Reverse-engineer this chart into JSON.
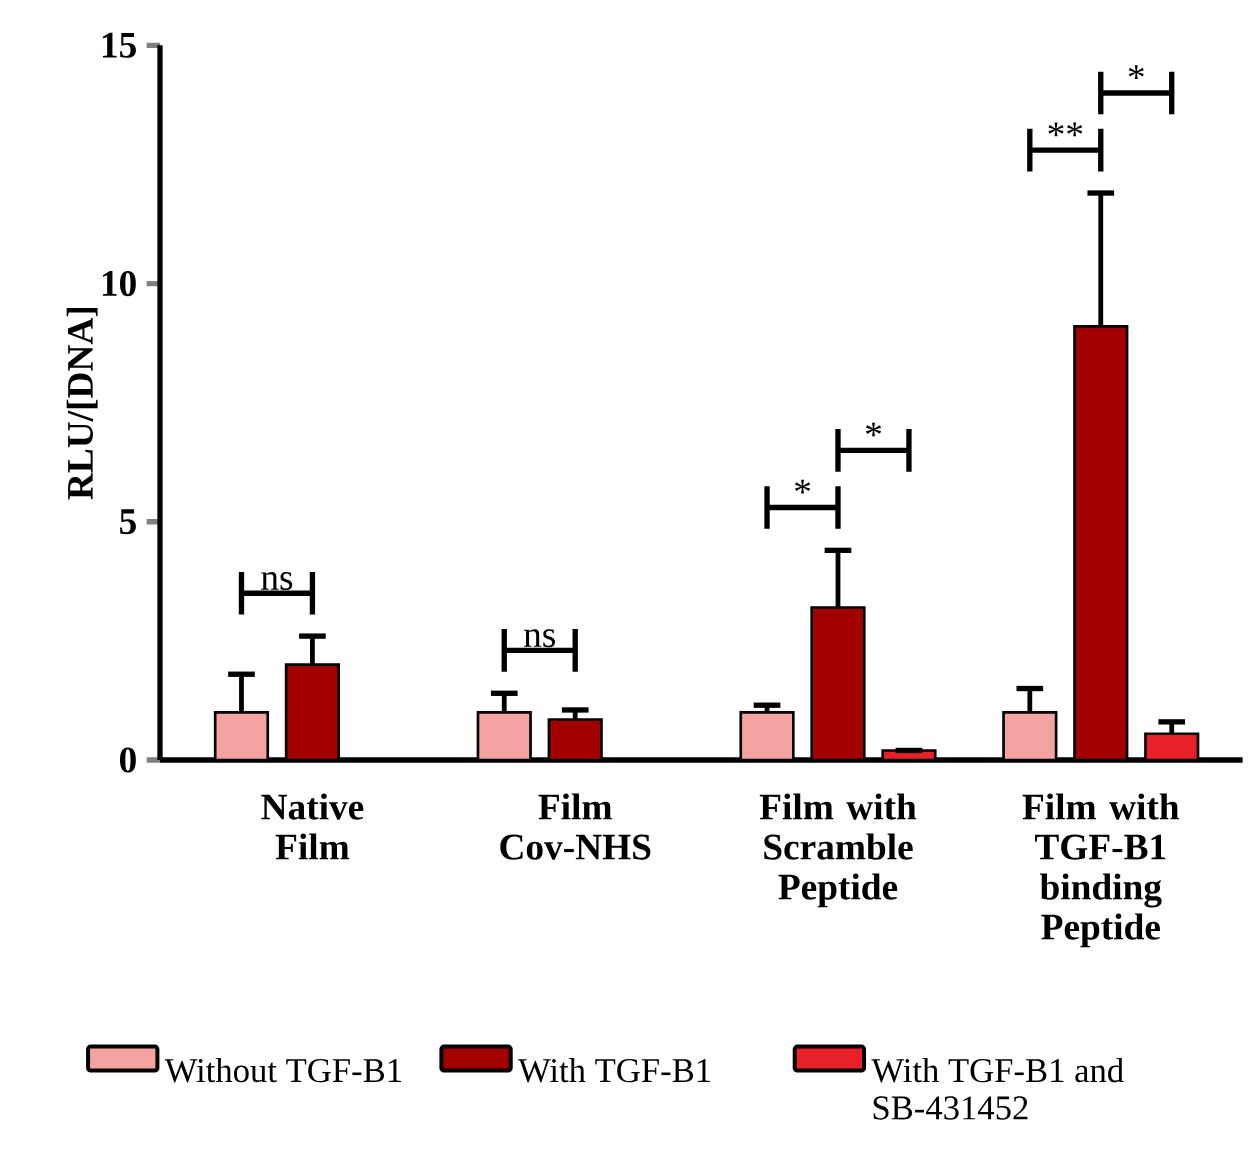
{
  "chart_data": {
    "type": "bar",
    "ylabel": "RLU/[DNA]",
    "categories": [
      "Native Film",
      "Film Cov-NHS",
      "Film with Scramble Peptide",
      "Film with TGF-B1 binding Peptide"
    ],
    "series": [
      {
        "name": "Without TGF-B1",
        "color": "#f4a3a3",
        "values": [
          1.0,
          1.0,
          1.0,
          1.0
        ],
        "errors": [
          0.8,
          0.4,
          0.15,
          0.5
        ]
      },
      {
        "name": "With TGF-B1",
        "color": "#a30000",
        "values": [
          2.0,
          0.85,
          3.2,
          9.1
        ],
        "errors": [
          0.6,
          0.2,
          1.2,
          2.8
        ]
      },
      {
        "name": "With TGF-B1 and SB-431452",
        "color": "#e8202a",
        "values": [
          null,
          null,
          0.2,
          0.55
        ],
        "errors": [
          null,
          null,
          null,
          0.25
        ]
      }
    ],
    "ylim": [
      0,
      15
    ],
    "yticks": [
      0,
      5,
      10,
      15
    ],
    "grid": false,
    "legend": "bottom",
    "annotations": [
      "ns",
      "ns",
      "*",
      "*",
      "**",
      "*"
    ]
  }
}
